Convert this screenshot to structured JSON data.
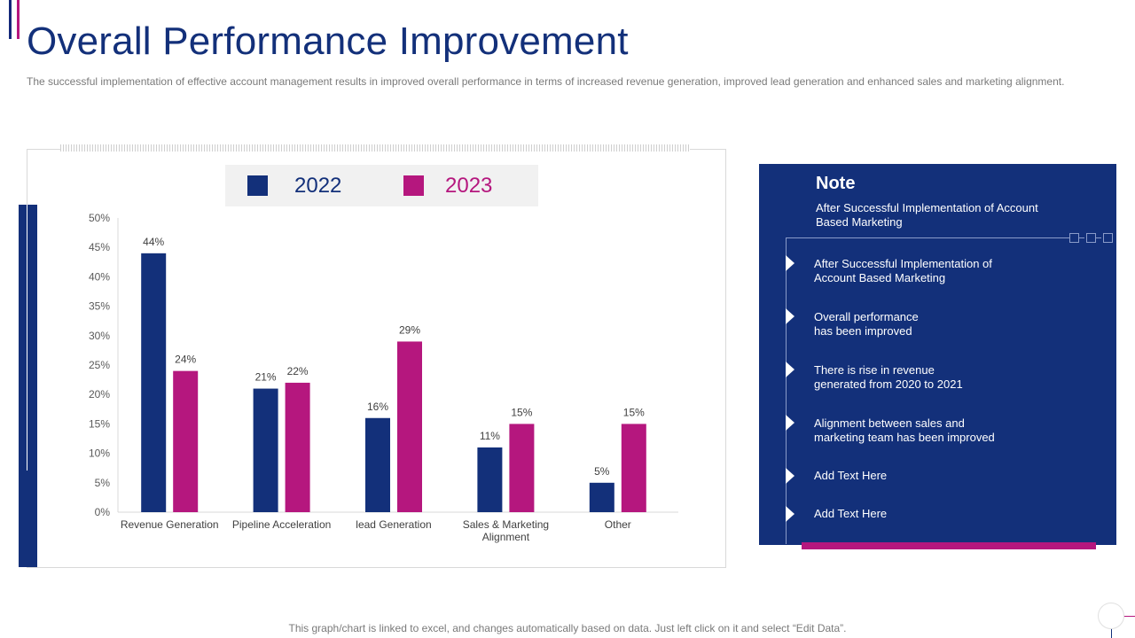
{
  "header": {
    "title": "Overall Performance Improvement",
    "subtitle": "The successful implementation of effective account management results in improved overall performance in terms of increased revenue generation, improved lead generation and enhanced sales and marketing alignment."
  },
  "colors": {
    "navy": "#13307a",
    "magenta": "#b5177e"
  },
  "chart_data": {
    "type": "bar",
    "categories": [
      "Revenue Generation",
      "Pipeline Acceleration",
      "lead Generation",
      "Sales & Marketing Alignment",
      "Other"
    ],
    "category_lines": [
      [
        "Revenue Generation"
      ],
      [
        "Pipeline Acceleration"
      ],
      [
        "lead Generation"
      ],
      [
        "Sales & Marketing",
        "Alignment"
      ],
      [
        "Other"
      ]
    ],
    "series": [
      {
        "name": "2022",
        "values": [
          44,
          21,
          16,
          11,
          5
        ],
        "color": "#13307a"
      },
      {
        "name": "2023",
        "values": [
          24,
          22,
          29,
          15,
          15
        ],
        "color": "#b5177e"
      }
    ],
    "value_suffix": "%",
    "ylim": [
      0,
      50
    ],
    "yticks": [
      0,
      5,
      10,
      15,
      20,
      25,
      30,
      35,
      40,
      45,
      50
    ],
    "ytick_labels": [
      "0%",
      "5%",
      "10%",
      "15%",
      "20%",
      "25%",
      "30%",
      "35%",
      "40%",
      "45%",
      "50%"
    ],
    "grid": false,
    "legend_position": "top"
  },
  "note": {
    "title": "Note",
    "subtitle": "After Successful Implementation  of Account Based Marketing",
    "items": [
      "After Successful Implementation  of\nAccount Based Marketing",
      "Overall  performance\n has been improved",
      "There is rise in revenue\ngenerated from 2020 to 2021",
      "Alignment  between sales and\nmarketing team has been improved",
      "Add Text Here",
      "Add Text Here"
    ]
  },
  "footer": {
    "text": "This graph/chart is linked to excel,  and changes automatically based on data. Just left click on it and select “Edit Data”."
  }
}
